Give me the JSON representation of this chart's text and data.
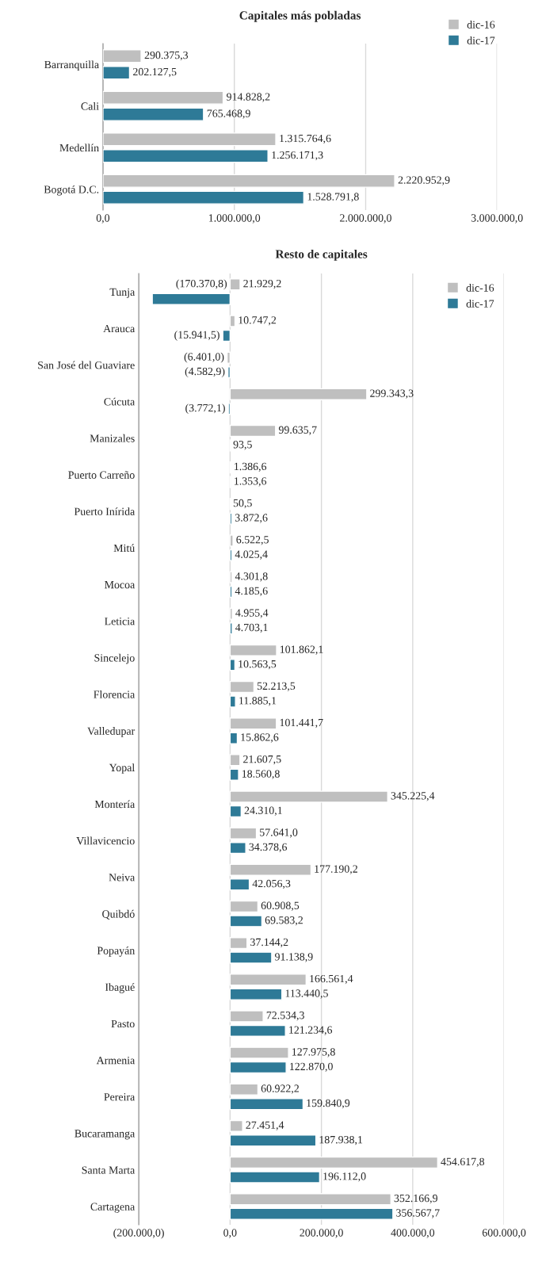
{
  "chart_data": [
    {
      "type": "bar",
      "orientation": "horizontal",
      "title": "Capitales más pobladas",
      "categories": [
        "Barranquilla",
        "Cali",
        "Medellín",
        "Bogotá D.C."
      ],
      "series": [
        {
          "name": "dic-16",
          "color": "#bfbfbf",
          "values": [
            290375.3,
            914828.2,
            1315764.6,
            2220952.9
          ],
          "value_labels": [
            "290.375,3",
            "914.828,2",
            "1.315.764,6",
            "2.220.952,9"
          ]
        },
        {
          "name": "dic-17",
          "color": "#2e7a97",
          "values": [
            202127.5,
            765468.9,
            1256171.3,
            1528791.8
          ],
          "value_labels": [
            "202.127,5",
            "765.468,9",
            "1.256.171,3",
            "1.528.791,8"
          ]
        }
      ],
      "xlim": [
        0,
        3000000
      ],
      "xticks": [
        {
          "value": 0,
          "label": "0,0"
        },
        {
          "value": 1000000,
          "label": "1.000.000,0"
        },
        {
          "value": 2000000,
          "label": "2.000.000,0"
        },
        {
          "value": 3000000,
          "label": "3.000.000,0"
        }
      ],
      "grid": "x",
      "legend": "top right"
    },
    {
      "type": "bar",
      "orientation": "horizontal",
      "title": "Resto de capitales",
      "categories": [
        "Tunja",
        "Arauca",
        "San José del Guaviare",
        "Cúcuta",
        "Manizales",
        "Puerto Carreño",
        "Puerto Inírida",
        "Mitú",
        "Mocoa",
        "Leticia",
        "Sincelejo",
        "Florencia",
        "Valledupar",
        "Yopal",
        "Montería",
        "Villavicencio",
        "Neiva",
        "Quibdó",
        "Popayán",
        "Ibagué",
        "Pasto",
        "Armenia",
        "Pereira",
        "Bucaramanga",
        "Santa Marta",
        "Cartagena"
      ],
      "series": [
        {
          "name": "dic-16",
          "color": "#bfbfbf",
          "values": [
            21929.2,
            10747.2,
            -6401.0,
            299343.3,
            99635.7,
            1386.6,
            50.5,
            6522.5,
            4301.8,
            4955.4,
            101862.1,
            52213.5,
            101441.7,
            21607.5,
            345225.4,
            57641.0,
            177190.2,
            60908.5,
            37144.2,
            166561.4,
            72534.3,
            127975.8,
            60922.2,
            27451.4,
            454617.8,
            352166.9
          ],
          "value_labels": [
            "21.929,2",
            "10.747,2",
            "(6.401,0)",
            "299.343,3",
            "99.635,7",
            "1.386,6",
            "50,5",
            "6.522,5",
            "4.301,8",
            "4.955,4",
            "101.862,1",
            "52.213,5",
            "101.441,7",
            "21.607,5",
            "345.225,4",
            "57.641,0",
            "177.190,2",
            "60.908,5",
            "37.144,2",
            "166.561,4",
            "72.534,3",
            "127.975,8",
            "60.922,2",
            "27.451,4",
            "454.617,8",
            "352.166,9"
          ]
        },
        {
          "name": "dic-17",
          "color": "#2e7a97",
          "values": [
            -170370.8,
            -15941.5,
            -4582.9,
            -3772.1,
            93.5,
            1353.6,
            3872.6,
            4025.4,
            4185.6,
            4703.1,
            10563.5,
            11885.1,
            15862.6,
            18560.8,
            24310.1,
            34378.6,
            42056.3,
            69583.2,
            91138.9,
            113440.5,
            121234.6,
            122870.0,
            159840.9,
            187938.1,
            196112.0,
            356567.7
          ],
          "value_labels": [
            "(170.370,8)",
            "(15.941,5)",
            "(4.582,9)",
            "(3.772,1)",
            "93,5",
            "1.353,6",
            "3.872,6",
            "4.025,4",
            "4.185,6",
            "4.703,1",
            "10.563,5",
            "11.885,1",
            "15.862,6",
            "18.560,8",
            "24.310,1",
            "34.378,6",
            "42.056,3",
            "69.583,2",
            "91.138,9",
            "113.440,5",
            "121.234,6",
            "122.870,0",
            "159.840,9",
            "187.938,1",
            "196.112,0",
            "356.567,7"
          ]
        }
      ],
      "xlim": [
        -200000,
        600000
      ],
      "xticks": [
        {
          "value": -200000,
          "label": "(200.000,0)"
        },
        {
          "value": 0,
          "label": "0,0"
        },
        {
          "value": 200000,
          "label": "200.000,0"
        },
        {
          "value": 400000,
          "label": "400.000,0"
        },
        {
          "value": 600000,
          "label": "600.000,0"
        }
      ],
      "grid": "x",
      "legend": "top right"
    }
  ]
}
